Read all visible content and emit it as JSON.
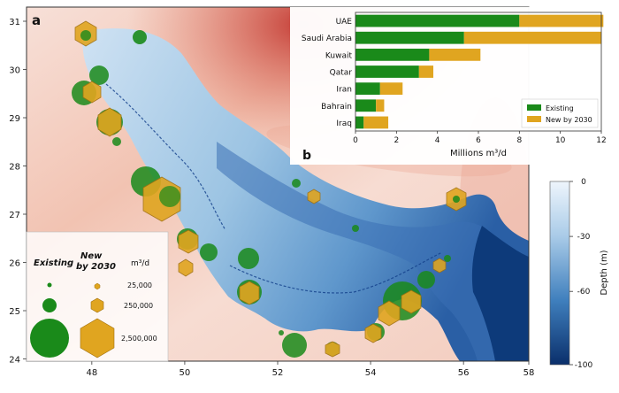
{
  "panel_a": {
    "label": "a",
    "x_ticks": [
      "48",
      "50",
      "52",
      "54",
      "56",
      "58"
    ],
    "y_ticks": [
      "31",
      "30",
      "29",
      "28",
      "27",
      "26",
      "25",
      "24"
    ],
    "colorbar": {
      "title": "Depth (m)",
      "ticks": [
        "0",
        "-30",
        "-60",
        "-100"
      ],
      "range": [
        -100,
        0
      ]
    },
    "legend": {
      "col1_title": "Existing",
      "col2_title": "New by 2030",
      "unit": "m³/d",
      "sizes": [
        "25,000",
        "250,000",
        "2,500,000"
      ]
    },
    "colors": {
      "existing": "#1a8a1a",
      "new": "#e0a520",
      "land_light": "#f6d8cf",
      "land_dark": "#c0302a",
      "sea_shallow": "#d5e6f5",
      "sea_deep": "#0d3a7a"
    }
  },
  "chart_data": [
    {
      "type": "bar",
      "orientation": "horizontal",
      "stacked": true,
      "label": "b",
      "categories": [
        "UAE",
        "Saudi Arabia",
        "Kuwait",
        "Qatar",
        "Iran",
        "Bahrain",
        "Iraq"
      ],
      "series": [
        {
          "name": "Existing",
          "values": [
            8.0,
            5.3,
            3.6,
            3.1,
            1.2,
            1.0,
            0.4
          ],
          "color": "#1a8a1a"
        },
        {
          "name": "New by 2030",
          "values": [
            4.1,
            6.7,
            2.5,
            0.7,
            1.1,
            0.4,
            1.2
          ],
          "color": "#e0a520"
        }
      ],
      "xlabel": "Millions m³/d",
      "xlim": [
        0,
        12
      ],
      "x_ticks": [
        "0",
        "2",
        "4",
        "6",
        "8",
        "10",
        "12"
      ],
      "legend_position": "bottom-right"
    }
  ]
}
